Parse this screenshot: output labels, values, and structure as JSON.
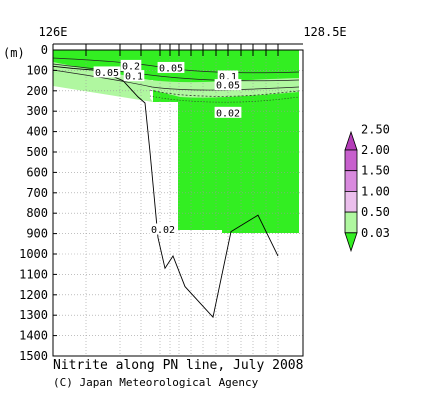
{
  "chart_data": {
    "type": "contour-section",
    "title": "Nitrite along PN line, July 2008",
    "credit": "(C) Japan Meteorological Agency",
    "x_top_labels": [
      "126E",
      "128.5E"
    ],
    "xlim": [
      126.0,
      128.5
    ],
    "y_unit_label": "(m)",
    "ylim": [
      0,
      1500
    ],
    "y_ticks": [
      0,
      100,
      200,
      300,
      400,
      500,
      600,
      700,
      800,
      900,
      1000,
      1100,
      1200,
      1300,
      1400,
      1500
    ],
    "grid": true,
    "stations_lon": [
      126.0,
      126.33,
      126.67,
      126.88,
      127.07,
      127.17,
      127.26,
      127.38,
      127.5,
      127.63,
      127.75,
      127.88,
      128.0,
      128.13,
      128.25
    ],
    "bottom_profile": {
      "lon": [
        126.0,
        126.2,
        126.45,
        126.7,
        126.85,
        126.92,
        126.97,
        127.05,
        127.12,
        127.2,
        127.32,
        127.6,
        127.78,
        128.05,
        128.25
      ],
      "depth": [
        80,
        90,
        100,
        150,
        230,
        260,
        500,
        920,
        1070,
        1010,
        1160,
        1310,
        890,
        810,
        1010
      ]
    },
    "colorbar": {
      "levels": [
        "0.03",
        "0.50",
        "1.00",
        "1.50",
        "2.00",
        "2.50"
      ],
      "colors": [
        "#33ee22",
        "#b0f7a0",
        "#ebbfec",
        "#d98ade",
        "#c760cd",
        "#b43db8"
      ],
      "extend": "both"
    },
    "contour_labels": [
      {
        "text": "0.2",
        "lon": 126.78,
        "depth": 78
      },
      {
        "text": "0.05",
        "lon": 126.54,
        "depth": 110
      },
      {
        "text": "0.1",
        "lon": 126.81,
        "depth": 128
      },
      {
        "text": "0.05",
        "lon": 127.18,
        "depth": 88
      },
      {
        "text": "0.1",
        "lon": 127.75,
        "depth": 130
      },
      {
        "text": "0.05",
        "lon": 127.75,
        "depth": 172
      },
      {
        "text": "0.02",
        "lon": 127.75,
        "depth": 308
      },
      {
        "text": "0.02",
        "lon": 127.1,
        "depth": 880
      }
    ]
  }
}
